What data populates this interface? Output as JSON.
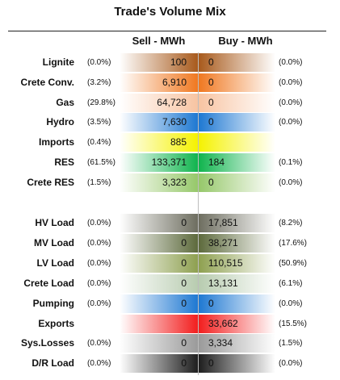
{
  "chart_data": {
    "type": "table",
    "title": "Trade's Volume Mix",
    "columns": [
      "Sell - MWh",
      "Buy - MWh"
    ],
    "groups": [
      {
        "rows": [
          {
            "label": "Lignite",
            "sell": "100",
            "sell_pct": "(0.0%)",
            "buy": "0",
            "buy_pct": "(0.0%)",
            "color": "#a85a1c"
          },
          {
            "label": "Crete Conv.",
            "sell": "6,910",
            "sell_pct": "(3.2%)",
            "buy": "0",
            "buy_pct": "(0.0%)",
            "color": "#f07820"
          },
          {
            "label": "Gas",
            "sell": "64,728",
            "sell_pct": "(29.8%)",
            "buy": "0",
            "buy_pct": "(0.0%)",
            "color": "#f8c4a2"
          },
          {
            "label": "Hydro",
            "sell": "7,630",
            "sell_pct": "(3.5%)",
            "buy": "0",
            "buy_pct": "(0.0%)",
            "color": "#1e78d2"
          },
          {
            "label": "Imports",
            "sell": "885",
            "sell_pct": "(0.4%)",
            "buy": "",
            "buy_pct": "",
            "color": "#f5f200"
          },
          {
            "label": "RES",
            "sell": "133,371",
            "sell_pct": "(61.5%)",
            "buy": "184",
            "buy_pct": "(0.1%)",
            "color": "#10b44e"
          },
          {
            "label": "Crete RES",
            "sell": "3,323",
            "sell_pct": "(1.5%)",
            "buy": "0",
            "buy_pct": "(0.0%)",
            "color": "#96c86a"
          }
        ]
      },
      {
        "rows": [
          {
            "label": "HV Load",
            "sell": "0",
            "sell_pct": "(0.0%)",
            "buy": "17,851",
            "buy_pct": "(8.2%)",
            "color": "#6e6e60"
          },
          {
            "label": "MV Load",
            "sell": "0",
            "sell_pct": "(0.0%)",
            "buy": "38,271",
            "buy_pct": "(17.6%)",
            "color": "#5d6a3c"
          },
          {
            "label": "LV Load",
            "sell": "0",
            "sell_pct": "(0.0%)",
            "buy": "110,515",
            "buy_pct": "(50.9%)",
            "color": "#8ea050"
          },
          {
            "label": "Crete Load",
            "sell": "0",
            "sell_pct": "(0.0%)",
            "buy": "13,131",
            "buy_pct": "(6.1%)",
            "color": "#b8ccb0"
          },
          {
            "label": "Pumping",
            "sell": "0",
            "sell_pct": "(0.0%)",
            "buy": "0",
            "buy_pct": "(0.0%)",
            "color": "#1e78d2"
          },
          {
            "label": "Exports",
            "sell": "",
            "sell_pct": "",
            "buy": "33,662",
            "buy_pct": "(15.5%)",
            "color": "#f21e1e"
          },
          {
            "label": "Sys.Losses",
            "sell": "0",
            "sell_pct": "(0.0%)",
            "buy": "3,334",
            "buy_pct": "(1.5%)",
            "color": "#9a9a9a"
          },
          {
            "label": "D/R Load",
            "sell": "0",
            "sell_pct": "(0.0%)",
            "buy": "0",
            "buy_pct": "(0.0%)",
            "color": "#1e1e1e"
          }
        ]
      }
    ]
  }
}
